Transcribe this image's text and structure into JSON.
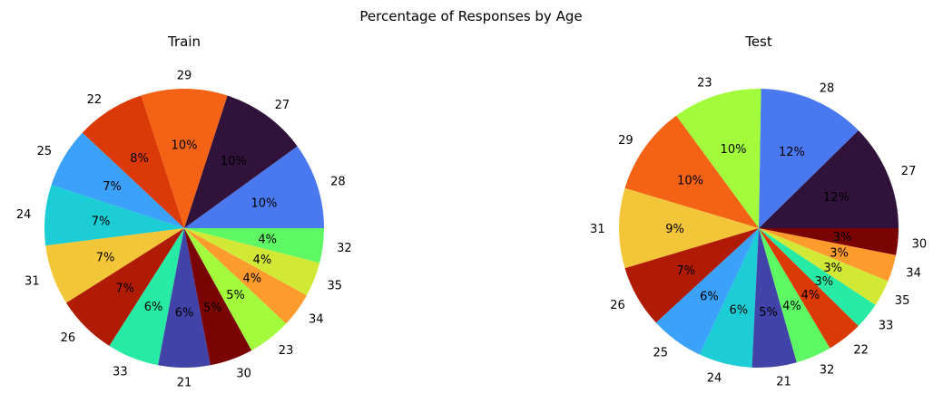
{
  "figure": {
    "title": "Percentage of Responses by Age"
  },
  "chart_data": [
    {
      "type": "pie",
      "title": "Train",
      "start_angle_deg": 0,
      "direction": "counterclockwise",
      "categories": [
        "28",
        "27",
        "29",
        "22",
        "25",
        "24",
        "31",
        "26",
        "33",
        "21",
        "30",
        "23",
        "34",
        "35",
        "32"
      ],
      "values": [
        10,
        10,
        10,
        8,
        7,
        7,
        7,
        7,
        6,
        6,
        5,
        5,
        4,
        4,
        4
      ],
      "value_labels": [
        "10%",
        "10%",
        "10%",
        "8%",
        "7%",
        "7%",
        "7%",
        "7%",
        "6%",
        "6%",
        "5%",
        "5%",
        "4%",
        "4%",
        "4%"
      ],
      "colors": [
        "#4a78ef",
        "#30123b",
        "#f36215",
        "#db3a07",
        "#3ba1fb",
        "#1ccdd6",
        "#f3c63a",
        "#af1b04",
        "#27eaa4",
        "#4143a8",
        "#7a0403",
        "#a2fc3c",
        "#fe9b2d",
        "#d1e834",
        "#5ef865"
      ]
    },
    {
      "type": "pie",
      "title": "Test",
      "start_angle_deg": 0,
      "direction": "counterclockwise",
      "categories": [
        "27",
        "28",
        "23",
        "29",
        "31",
        "26",
        "25",
        "24",
        "21",
        "32",
        "22",
        "33",
        "35",
        "34",
        "30"
      ],
      "values": [
        12,
        12,
        10,
        10,
        9,
        7,
        6,
        6,
        5,
        4,
        4,
        3,
        3,
        3,
        3
      ],
      "value_labels": [
        "12%",
        "12%",
        "10%",
        "10%",
        "9%",
        "7%",
        "6%",
        "6%",
        "5%",
        "4%",
        "4%",
        "3%",
        "3%",
        "3%",
        "3%"
      ],
      "colors": [
        "#30123b",
        "#4a78ef",
        "#a2fc3c",
        "#f36215",
        "#f3c63a",
        "#af1b04",
        "#3ba1fb",
        "#1ccdd6",
        "#4143a8",
        "#5ef865",
        "#db3a07",
        "#27eaa4",
        "#d1e834",
        "#fe9b2d",
        "#7a0403"
      ]
    }
  ]
}
